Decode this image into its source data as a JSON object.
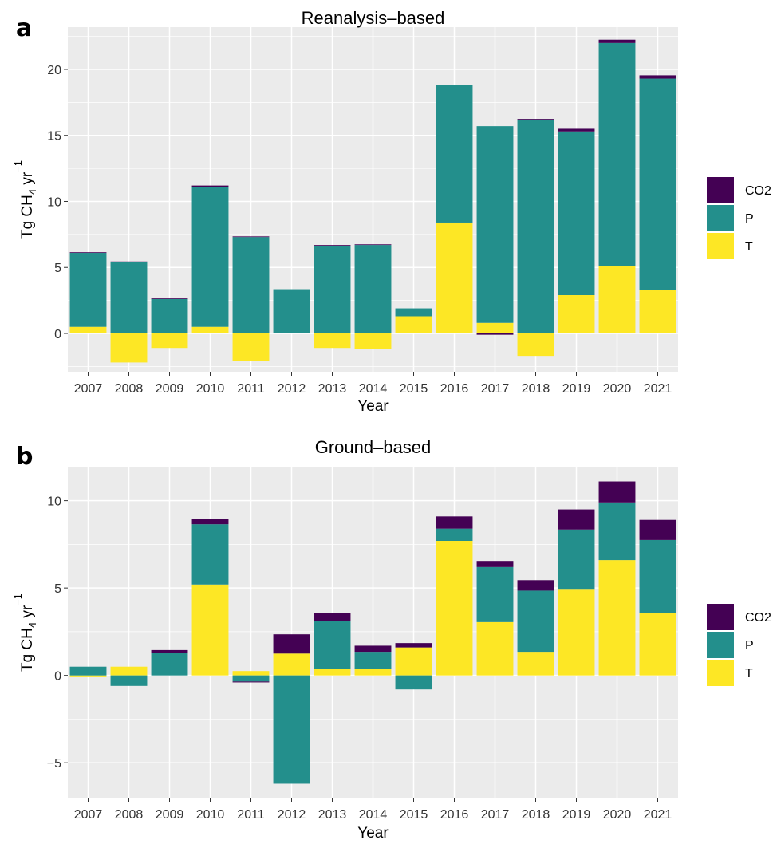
{
  "colors": {
    "CO2": "#440154",
    "P": "#238f8c",
    "T": "#fde725",
    "panel_bg": "#ebebeb",
    "grid": "#ffffff"
  },
  "legend": {
    "items": [
      "CO2",
      "P",
      "T"
    ]
  },
  "chart_data": [
    {
      "type": "bar",
      "stacked": true,
      "panel_label": "a",
      "title": "Reanalysis–based",
      "xlabel": "Year",
      "ylabel_prefix": "Tg CH",
      "ylabel_sub": "4",
      "ylabel_mid": " yr",
      "ylabel_sup": "−1",
      "ylim": [
        -2.9,
        23.2
      ],
      "yticks": [
        0,
        5,
        10,
        15,
        20
      ],
      "ytick_labels": [
        "0",
        "5",
        "10",
        "15",
        "20"
      ],
      "grid": true,
      "legend_position": "right",
      "categories": [
        "2007",
        "2008",
        "2009",
        "2010",
        "2011",
        "2012",
        "2013",
        "2014",
        "2015",
        "2016",
        "2017",
        "2018",
        "2019",
        "2020",
        "2021"
      ],
      "series": [
        {
          "name": "T",
          "values": [
            0.5,
            -2.2,
            -1.1,
            0.5,
            -2.1,
            0.0,
            -1.1,
            -1.2,
            1.3,
            8.4,
            0.8,
            -1.7,
            2.9,
            5.1,
            3.3
          ]
        },
        {
          "name": "P",
          "values": [
            5.6,
            5.4,
            2.6,
            10.6,
            7.3,
            3.35,
            6.65,
            6.7,
            0.6,
            10.4,
            14.9,
            16.2,
            12.4,
            16.9,
            16.0
          ]
        },
        {
          "name": "CO2",
          "values": [
            0.05,
            0.05,
            0.05,
            0.1,
            0.05,
            0.0,
            0.05,
            0.05,
            0.0,
            0.05,
            -0.1,
            0.05,
            0.2,
            0.25,
            0.25
          ]
        }
      ]
    },
    {
      "type": "bar",
      "stacked": true,
      "panel_label": "b",
      "title": "Ground–based",
      "xlabel": "Year",
      "ylabel_prefix": "Tg CH",
      "ylabel_sub": "4",
      "ylabel_mid": " yr",
      "ylabel_sup": "−1",
      "ylim": [
        -7.0,
        11.9
      ],
      "yticks": [
        -5,
        0,
        5,
        10
      ],
      "ytick_labels": [
        "−5",
        "0",
        "5",
        "10"
      ],
      "grid": true,
      "legend_position": "right",
      "categories": [
        "2007",
        "2008",
        "2009",
        "2010",
        "2011",
        "2012",
        "2013",
        "2014",
        "2015",
        "2016",
        "2017",
        "2018",
        "2019",
        "2020",
        "2021"
      ],
      "series": [
        {
          "name": "T",
          "values": [
            -0.1,
            0.5,
            0.0,
            5.2,
            0.25,
            1.25,
            0.35,
            0.35,
            1.6,
            7.7,
            3.05,
            1.35,
            4.95,
            6.6,
            3.55
          ]
        },
        {
          "name": "P",
          "values": [
            0.5,
            -0.6,
            1.3,
            3.45,
            -0.35,
            -6.2,
            2.75,
            1.0,
            -0.8,
            0.7,
            3.15,
            3.5,
            3.4,
            3.3,
            4.2
          ]
        },
        {
          "name": "CO2",
          "values": [
            0.0,
            0.0,
            0.15,
            0.3,
            -0.05,
            1.1,
            0.45,
            0.35,
            0.25,
            0.7,
            0.35,
            0.6,
            1.15,
            1.2,
            1.15
          ]
        }
      ]
    }
  ]
}
